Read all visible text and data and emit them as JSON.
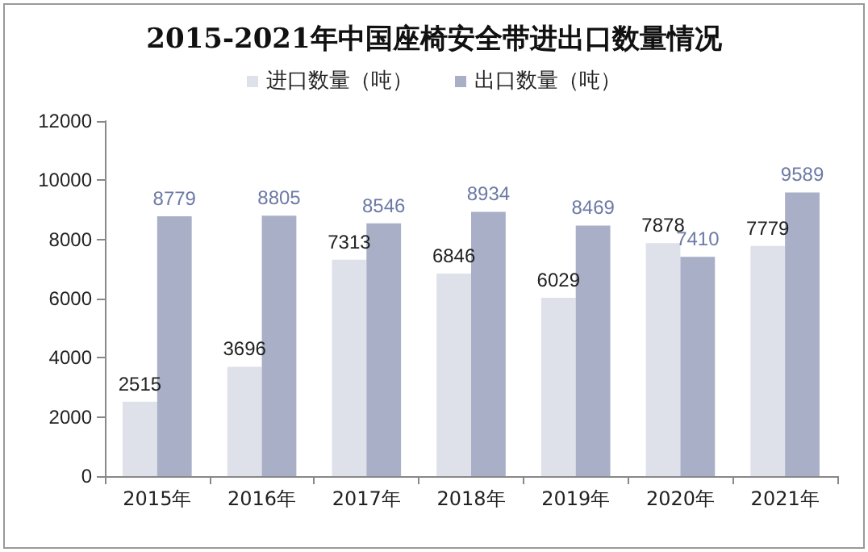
{
  "chart_data": {
    "type": "bar",
    "title": "2015-2021年中国座椅安全带进出口数量情况",
    "categories": [
      "2015年",
      "2016年",
      "2017年",
      "2018年",
      "2019年",
      "2020年",
      "2021年"
    ],
    "series": [
      {
        "name": "进口数量（吨）",
        "color": "#dee1e9",
        "values": [
          2515,
          3696,
          7313,
          6846,
          6029,
          7878,
          7779
        ]
      },
      {
        "name": "出口数量（吨）",
        "color": "#a9afc7",
        "values": [
          8779,
          8805,
          8546,
          8934,
          8469,
          7410,
          9589
        ]
      }
    ],
    "ylim": [
      0,
      12000
    ],
    "yticks": [
      0,
      2000,
      4000,
      6000,
      8000,
      10000,
      12000
    ],
    "grid": false,
    "legend": "top",
    "data_labels": true
  }
}
